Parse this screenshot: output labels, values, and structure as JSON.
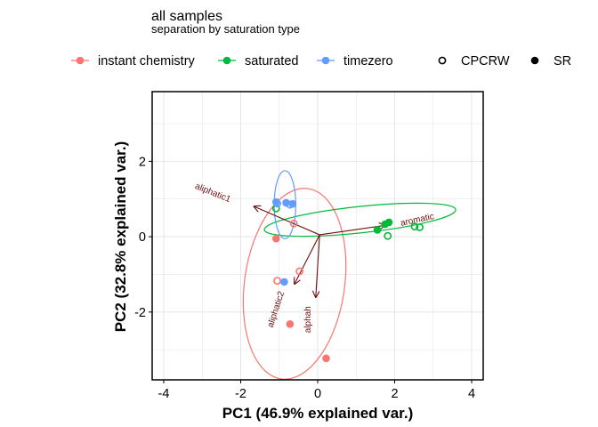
{
  "chart_data": {
    "type": "scatter",
    "title": "all samples",
    "subtitle": "separation by saturation type",
    "xlabel": "PC1 (46.9% explained var.)",
    "ylabel": "PC2 (32.8% explained var.)",
    "xlim": [
      -4.3,
      4.3
    ],
    "ylim": [
      -3.8,
      3.85
    ],
    "xticks": [
      -4,
      -2,
      0,
      2,
      4
    ],
    "yticks": [
      -2,
      0,
      2
    ],
    "grid": true,
    "legend_placement": "top",
    "color_legend": [
      {
        "name": "instant chemistry",
        "color": "#F8766D"
      },
      {
        "name": "saturated",
        "color": "#00BA38"
      },
      {
        "name": "timezero",
        "color": "#619CFF"
      }
    ],
    "shape_legend": [
      {
        "name": "CPCRW",
        "shape": "open-circle"
      },
      {
        "name": "SR",
        "shape": "filled-circle"
      }
    ],
    "series": [
      {
        "name": "instant chemistry",
        "color": "#F8766D",
        "points": [
          {
            "x": -1.08,
            "y": -0.05,
            "shape": "SR"
          },
          {
            "x": -0.72,
            "y": -2.32,
            "shape": "SR"
          },
          {
            "x": 0.22,
            "y": -3.23,
            "shape": "SR"
          },
          {
            "x": -0.62,
            "y": 0.35,
            "shape": "CPCRW"
          },
          {
            "x": -1.05,
            "y": -1.17,
            "shape": "CPCRW"
          },
          {
            "x": -0.47,
            "y": -0.92,
            "shape": "CPCRW"
          }
        ],
        "ellipse": {
          "cx": -0.6,
          "cy": -1.25,
          "rx": 1.3,
          "ry": 2.55,
          "angle": 8
        }
      },
      {
        "name": "saturated",
        "color": "#00BA38",
        "points": [
          {
            "x": 1.55,
            "y": 0.18,
            "shape": "SR"
          },
          {
            "x": 1.75,
            "y": 0.33,
            "shape": "SR"
          },
          {
            "x": 1.85,
            "y": 0.38,
            "shape": "SR"
          },
          {
            "x": -1.08,
            "y": 0.75,
            "shape": "CPCRW"
          },
          {
            "x": 1.82,
            "y": 0.02,
            "shape": "CPCRW"
          },
          {
            "x": 2.52,
            "y": 0.27,
            "shape": "CPCRW"
          },
          {
            "x": 2.65,
            "y": 0.25,
            "shape": "CPCRW"
          }
        ],
        "ellipse": {
          "cx": 1.1,
          "cy": 0.45,
          "rx": 2.5,
          "ry": 0.35,
          "angle": -6
        }
      },
      {
        "name": "timezero",
        "color": "#619CFF",
        "points": [
          {
            "x": -1.08,
            "y": 0.92,
            "shape": "SR"
          },
          {
            "x": -0.82,
            "y": 0.9,
            "shape": "SR"
          },
          {
            "x": -0.65,
            "y": 0.87,
            "shape": "SR"
          },
          {
            "x": -0.87,
            "y": -1.2,
            "shape": "SR"
          },
          {
            "x": -1.05,
            "y": 0.88,
            "shape": "CPCRW"
          },
          {
            "x": -0.72,
            "y": 0.85,
            "shape": "CPCRW"
          }
        ],
        "ellipse": {
          "cx": -0.85,
          "cy": 0.85,
          "rx": 0.28,
          "ry": 0.9,
          "angle": 0
        }
      }
    ],
    "loadings": [
      {
        "label": "aliphatic1",
        "x": -1.65,
        "y": 0.8,
        "label_x": -2.75,
        "label_y": 1.1,
        "label_angle": 22
      },
      {
        "label": "aromatic",
        "x": 1.75,
        "y": 0.3,
        "label_x": 2.6,
        "label_y": 0.38,
        "label_angle": -12
      },
      {
        "label": "aliphatic2",
        "x": -0.6,
        "y": -1.25,
        "label_x": -1.02,
        "label_y": -1.95,
        "label_angle": -72
      },
      {
        "label": "alphah",
        "x": -0.05,
        "y": -1.6,
        "label_x": -0.18,
        "label_y": -2.2,
        "label_angle": -90
      }
    ],
    "loading_origin": {
      "x": 0.05,
      "y": 0.05
    },
    "colors": {
      "loading": "#6b0f0f",
      "grid": "#e6e6e6",
      "panel_border": "#000000"
    }
  }
}
